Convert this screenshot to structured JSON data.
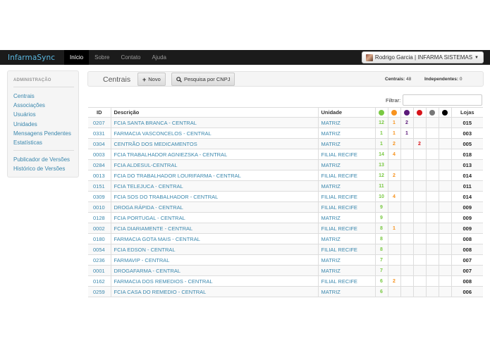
{
  "colors": {
    "green": "#7ac943",
    "orange": "#f7931e",
    "purple": "#5b1a7a",
    "red": "#d7141a",
    "gray": "#777777",
    "black": "#000000",
    "link": "#3a87ad"
  },
  "navbar": {
    "brand": "InfarmaSync",
    "links": [
      "Início",
      "Sobre",
      "Contato",
      "Ajuda"
    ],
    "user_label": "Rodrigo Garcia | INFARMA SISTEMAS"
  },
  "sidebar": {
    "header": "ADMINISTRAÇÃO",
    "items": [
      "Centrais",
      "Associações",
      "Usuários",
      "Unidades",
      "Mensagens Pendentes",
      "Estatísticas"
    ],
    "items2": [
      "Publicador de Versões",
      "Histórico de Versões"
    ]
  },
  "toolbar": {
    "title": "Centrais",
    "new_label": "Novo",
    "search_label": "Pesquisa por CNPJ",
    "centrais_label": "Centrais:",
    "centrais_value": "48",
    "independentes_label": "Independentes:",
    "independentes_value": "0"
  },
  "filter": {
    "label": "Filtrar:",
    "value": ""
  },
  "table": {
    "headers": {
      "id": "ID",
      "descricao": "Descrição",
      "unidade": "Unidade",
      "lojas": "Lojas"
    },
    "status_columns": [
      {
        "icon": "green-status-icon",
        "color": "#7ac943"
      },
      {
        "icon": "orange-status-icon",
        "color": "#f7931e"
      },
      {
        "icon": "purple-status-icon",
        "color": "#5b1a7a"
      },
      {
        "icon": "red-status-icon",
        "color": "#d7141a"
      },
      {
        "icon": "gray-status-icon",
        "color": "#777777"
      },
      {
        "icon": "black-status-icon",
        "color": "#000000"
      }
    ],
    "rows": [
      {
        "id": "0207",
        "desc": "FCIA SANTA BRANCA - CENTRAL",
        "unidade": "MATRIZ",
        "s": [
          "12",
          "1",
          "2",
          "",
          "",
          ""
        ],
        "lojas": "015"
      },
      {
        "id": "0331",
        "desc": "FARMACIA VASCONCELOS - CENTRAL",
        "unidade": "MATRIZ",
        "s": [
          "1",
          "1",
          "1",
          "",
          "",
          ""
        ],
        "lojas": "003"
      },
      {
        "id": "0304",
        "desc": "CENTRÃO DOS MEDICAMENTOS",
        "unidade": "MATRIZ",
        "s": [
          "1",
          "2",
          "",
          "2",
          "",
          ""
        ],
        "lojas": "005"
      },
      {
        "id": "0003",
        "desc": "FCIA TRABALHADOR AGNIEZSKA - CENTRAL",
        "unidade": "FILIAL RECIFE",
        "s": [
          "14",
          "4",
          "",
          "",
          "",
          ""
        ],
        "lojas": "018"
      },
      {
        "id": "0284",
        "desc": "FCIA ALDESUL-CENTRAL",
        "unidade": "MATRIZ",
        "s": [
          "13",
          "",
          "",
          "",
          "",
          ""
        ],
        "lojas": "013"
      },
      {
        "id": "0013",
        "desc": "FCIA DO TRABALHADOR LOURIFARMA - CENTRAL",
        "unidade": "FILIAL RECIFE",
        "s": [
          "12",
          "2",
          "",
          "",
          "",
          ""
        ],
        "lojas": "014"
      },
      {
        "id": "0151",
        "desc": "FCIA TELEJUCA - CENTRAL",
        "unidade": "MATRIZ",
        "s": [
          "11",
          "",
          "",
          "",
          "",
          ""
        ],
        "lojas": "011"
      },
      {
        "id": "0309",
        "desc": "FCIA SOS DO TRABALHADOR - CENTRAL",
        "unidade": "FILIAL RECIFE",
        "s": [
          "10",
          "4",
          "",
          "",
          "",
          ""
        ],
        "lojas": "014"
      },
      {
        "id": "0010",
        "desc": "DROGA RÁPIDA - CENTRAL",
        "unidade": "FILIAL RECIFE",
        "s": [
          "9",
          "",
          "",
          "",
          "",
          ""
        ],
        "lojas": "009"
      },
      {
        "id": "0128",
        "desc": "FCIA PORTUGAL - CENTRAL",
        "unidade": "MATRIZ",
        "s": [
          "9",
          "",
          "",
          "",
          "",
          ""
        ],
        "lojas": "009"
      },
      {
        "id": "0002",
        "desc": "FCIA DIARIAMENTE - CENTRAL",
        "unidade": "FILIAL RECIFE",
        "s": [
          "8",
          "1",
          "",
          "",
          "",
          ""
        ],
        "lojas": "009"
      },
      {
        "id": "0180",
        "desc": "FARMACIA GOTA MAIS - CENTRAL",
        "unidade": "MATRIZ",
        "s": [
          "8",
          "",
          "",
          "",
          "",
          ""
        ],
        "lojas": "008"
      },
      {
        "id": "0054",
        "desc": "FCIA EDSON - CENTRAL",
        "unidade": "FILIAL RECIFE",
        "s": [
          "8",
          "",
          "",
          "",
          "",
          ""
        ],
        "lojas": "008"
      },
      {
        "id": "0236",
        "desc": "FARMAVIP - CENTRAL",
        "unidade": "MATRIZ",
        "s": [
          "7",
          "",
          "",
          "",
          "",
          ""
        ],
        "lojas": "007"
      },
      {
        "id": "0001",
        "desc": "DROGAFARMA - CENTRAL",
        "unidade": "MATRIZ",
        "s": [
          "7",
          "",
          "",
          "",
          "",
          ""
        ],
        "lojas": "007"
      },
      {
        "id": "0162",
        "desc": "FARMACIA DOS REMEDIOS - CENTRAL",
        "unidade": "FILIAL RECIFE",
        "s": [
          "6",
          "2",
          "",
          "",
          "",
          ""
        ],
        "lojas": "008"
      },
      {
        "id": "0259",
        "desc": "FCIA CASA DO REMEDIO - CENTRAL",
        "unidade": "MATRIZ",
        "s": [
          "6",
          "",
          "",
          "",
          "",
          ""
        ],
        "lojas": "006"
      }
    ]
  }
}
